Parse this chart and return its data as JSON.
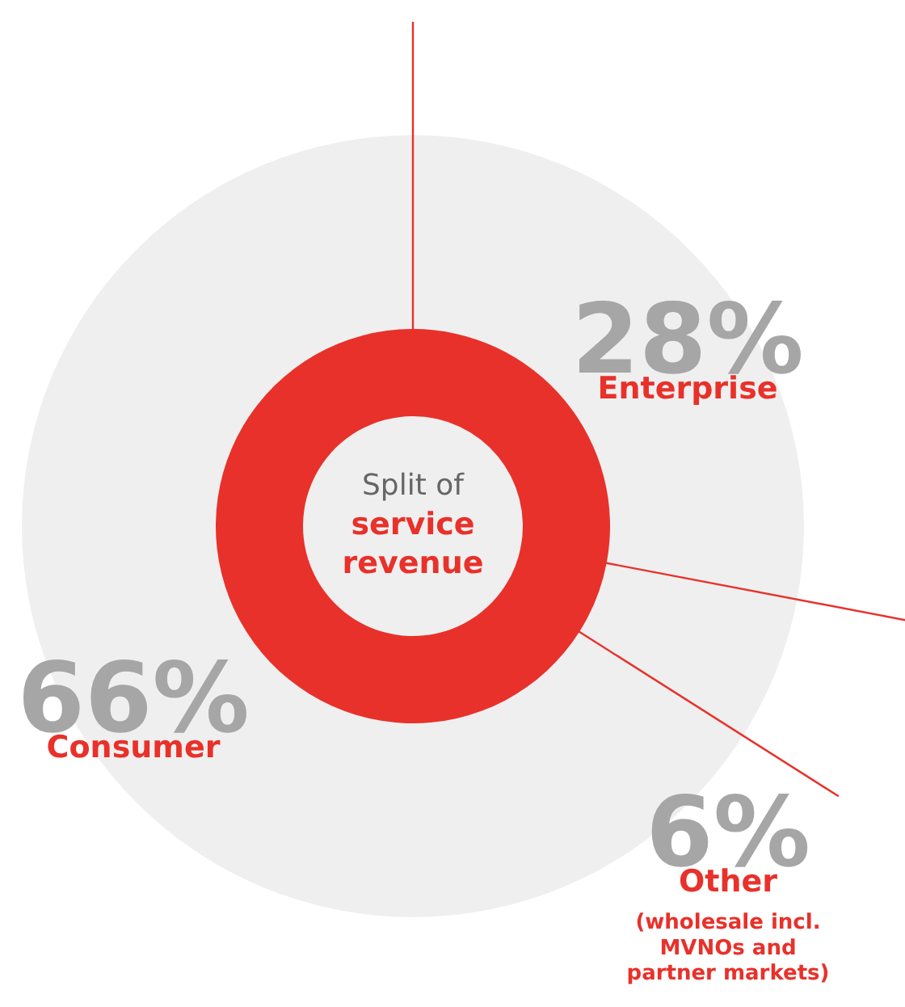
{
  "chart_data": {
    "type": "donut",
    "title": "Split of",
    "subtitle": "service revenue",
    "categories": [
      "Enterprise",
      "Other",
      "Consumer"
    ],
    "values": [
      28,
      6,
      66
    ],
    "colors": [
      "#e8312a",
      "#e8312a",
      "#e8312a"
    ],
    "value_labels": [
      "28%",
      "6%",
      "66%"
    ],
    "annotations": [
      "(wholesale incl. MVNOs and partner markets)"
    ]
  }
}
